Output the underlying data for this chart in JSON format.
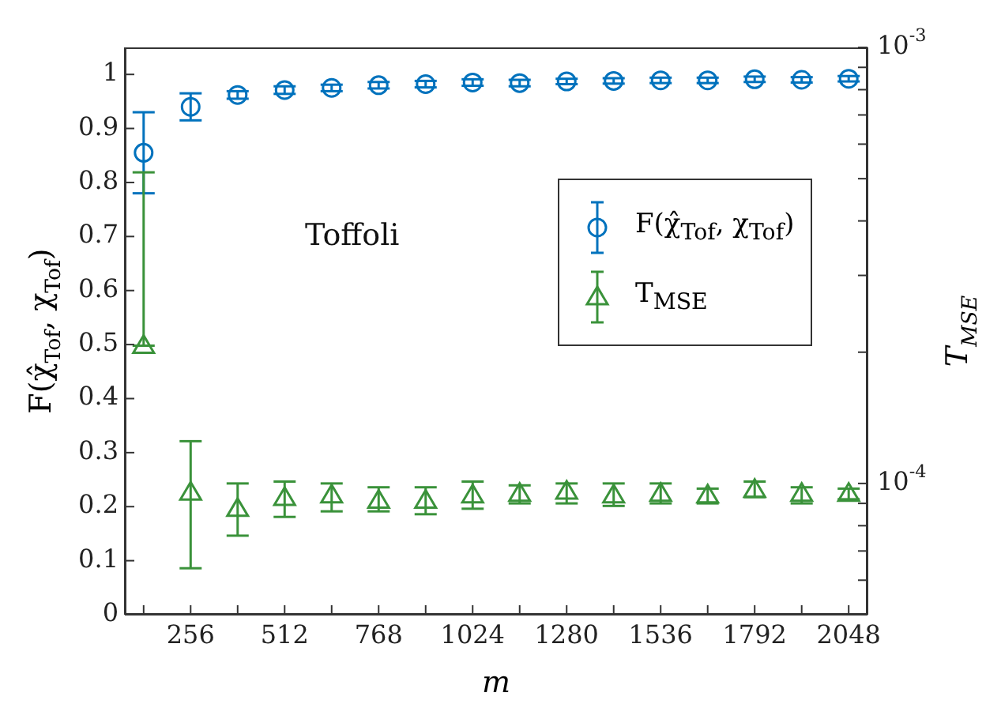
{
  "chart_data": {
    "type": "scatter",
    "xlabel": "m",
    "ylabel": "F(χ̂$_{Tof}$, χ$_{Tof}$)",
    "y2label": "T$_{MSE}$",
    "annotations": [
      "Toffoli"
    ],
    "x": [
      128,
      256,
      384,
      512,
      640,
      768,
      896,
      1024,
      1152,
      1280,
      1408,
      1536,
      1664,
      1792,
      1920,
      2048
    ],
    "xlim": [
      76.8,
      2099.2
    ],
    "xticks": [
      {
        "value": 128,
        "label": null
      },
      256,
      {
        "value": 384,
        "label": null
      },
      512,
      {
        "value": 640,
        "label": null
      },
      768,
      {
        "value": 896,
        "label": null
      },
      1024,
      {
        "value": 1152,
        "label": null
      },
      1280,
      {
        "value": 1408,
        "label": null
      },
      1536,
      {
        "value": 1664,
        "label": null
      },
      1792,
      {
        "value": 1920,
        "label": null
      },
      2048
    ],
    "ylim": [
      0,
      1.05
    ],
    "yticks": [
      0,
      0.1,
      0.2,
      0.3,
      0.4,
      0.5,
      0.6,
      0.7,
      0.8,
      0.9,
      1
    ],
    "y2lim": [
      5e-05,
      0.001
    ],
    "y2ticks": [
      {
        "value": 6e-05,
        "label": null
      },
      {
        "value": 7e-05,
        "label": null
      },
      {
        "value": 8e-05,
        "label": null
      },
      {
        "value": 9e-05,
        "label": null
      },
      {
        "value": 0.0001,
        "label": "10$^{-4}$"
      },
      {
        "value": 0.0002,
        "label": null
      },
      {
        "value": 0.0003,
        "label": null
      },
      {
        "value": 0.0004,
        "label": null
      },
      {
        "value": 0.0005,
        "label": null
      },
      {
        "value": 0.0006,
        "label": null
      },
      {
        "value": 0.0007,
        "label": null
      },
      {
        "value": 0.0008,
        "label": null
      },
      {
        "value": 0.0009,
        "label": null
      },
      {
        "value": 0.001,
        "label": "10$^{-3}$"
      }
    ],
    "log": "y2",
    "grid": false,
    "legend": "right",
    "series": [
      {
        "name": "F(χ̂$_{Tof}$, χ$_{Tof}$)",
        "color": "#0072bd",
        "marker": "circle",
        "values": [
          0.855,
          0.94,
          0.962,
          0.971,
          0.975,
          0.98,
          0.982,
          0.985,
          0.984,
          0.987,
          0.988,
          0.989,
          0.989,
          0.991,
          0.99,
          0.992
        ],
        "errors": [
          [
            0.78,
            0.93
          ],
          [
            0.915,
            0.965
          ],
          0.007,
          0.007,
          0.006,
          0.006,
          0.006,
          0.006,
          0.006,
          0.005,
          0.005,
          0.005,
          0.005,
          0.005,
          0.005,
          0.005
        ]
      },
      {
        "name": "T$_{MSE}$",
        "color": "#3a923a",
        "marker": "triangle",
        "axis": "y2",
        "values": [
          0.000207,
          9.54e-05,
          8.75e-05,
          9.27e-05,
          9.4e-05,
          9.14e-05,
          9.14e-05,
          9.4e-05,
          9.48e-05,
          9.59e-05,
          9.4e-05,
          9.48e-05,
          9.4e-05,
          9.68e-05,
          9.48e-05,
          9.48e-05
        ],
        "errors": [
          [
            0.000207,
            0.000517
          ],
          [
            6.39e-05,
            0.000125
          ],
          [
            7.59e-05,
            0.0001
          ],
          [
            8.38e-05,
            0.000101
          ],
          [
            8.63e-05,
            0.0001
          ],
          [
            8.63e-05,
            9.8e-05
          ],
          [
            8.5e-05,
            9.8e-05
          ],
          [
            8.75e-05,
            0.000101
          ],
          [
            9e-05,
            9.9e-05
          ],
          [
            9e-05,
            0.0001
          ],
          [
            8.88e-05,
            0.0001
          ],
          [
            9e-05,
            0.0001
          ],
          [
            9e-05,
            9.73e-05
          ],
          [
            9.3e-05,
            0.000101
          ],
          [
            9e-05,
            9.8e-05
          ],
          [
            9.2e-05,
            9.73e-05
          ]
        ]
      }
    ]
  }
}
